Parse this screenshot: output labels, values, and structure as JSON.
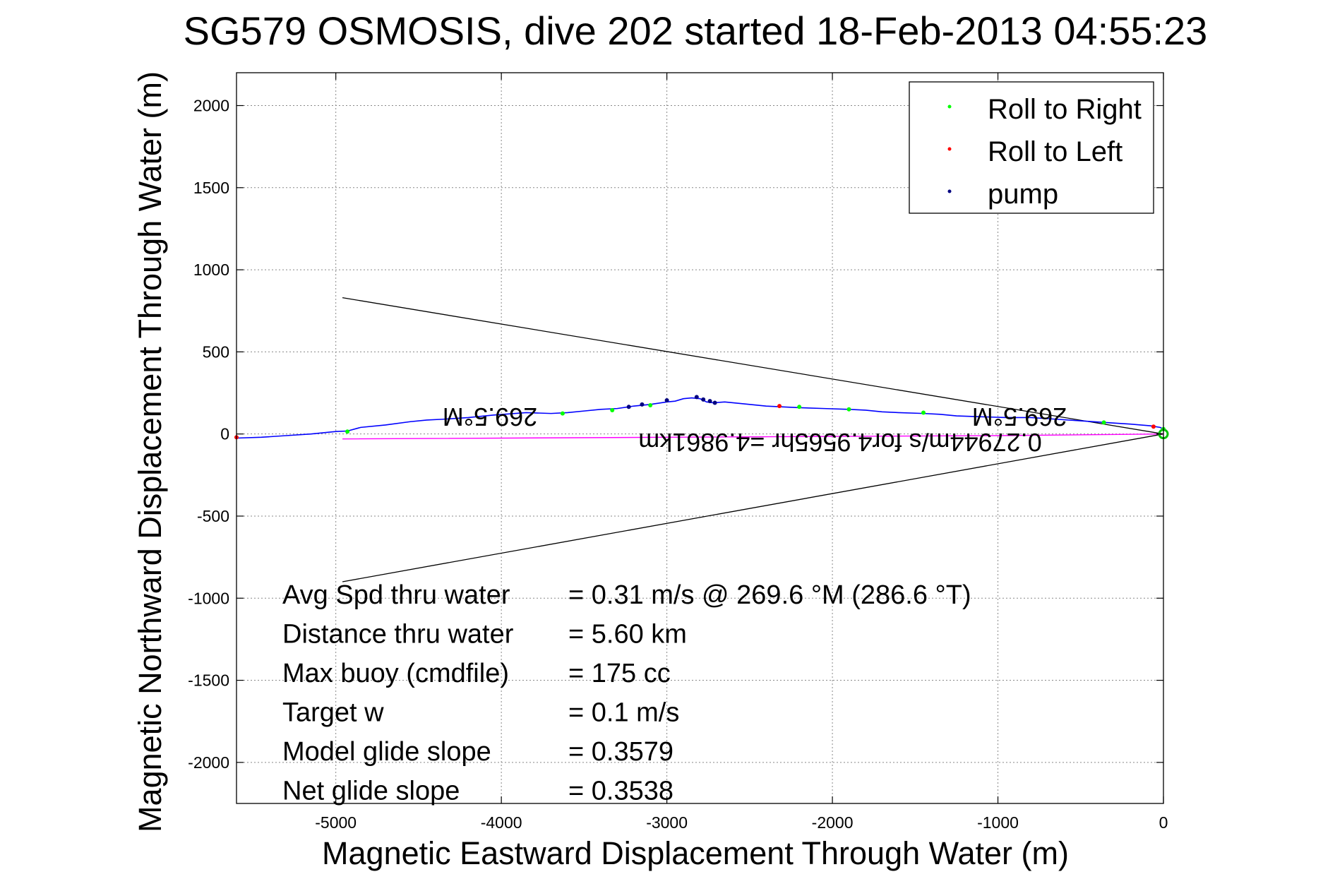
{
  "chart_data": {
    "type": "line",
    "title": "SG579 OSMOSIS, dive 202 started 18-Feb-2013 04:55:23",
    "xlabel": "Magnetic Eastward Displacement Through Water (m)",
    "ylabel": "Magnetic Northward Displacement Through Water (m)",
    "xlim": [
      -5600,
      0
    ],
    "ylim": [
      -2250,
      2200
    ],
    "xticks": [
      -5000,
      -4000,
      -3000,
      -2000,
      -1000,
      0
    ],
    "yticks": [
      2000,
      1500,
      1000,
      500,
      0,
      -500,
      -1000,
      -1500,
      -2000
    ],
    "grid": true,
    "legend_position": "top-right",
    "legend": [
      {
        "label": "Roll to Right",
        "color": "#00ff00"
      },
      {
        "label": "Roll to Left",
        "color": "#ff0000"
      },
      {
        "label": "pump",
        "color": "#000080"
      }
    ],
    "series": [
      {
        "kind": "track",
        "color": "#0000ff",
        "x": [
          -5600,
          -5450,
          -5300,
          -5150,
          -5000,
          -4930,
          -4850,
          -4700,
          -4550,
          -4450,
          -4350,
          -4200,
          -4050,
          -3850,
          -3700,
          -3600,
          -3500,
          -3400,
          -3300,
          -3200,
          -3100,
          -3000,
          -2950,
          -2900,
          -2850,
          -2800,
          -2760,
          -2720,
          -2650,
          -2500,
          -2400,
          -2300,
          -2200,
          -2050,
          -1900,
          -1800,
          -1700,
          -1600,
          -1450,
          -1350,
          -1250,
          -1100,
          -950,
          -800,
          -650,
          -500,
          -350,
          -200,
          -80,
          -20,
          0
        ],
        "y": [
          -25,
          -20,
          -10,
          0,
          15,
          18,
          40,
          55,
          75,
          85,
          90,
          100,
          115,
          130,
          125,
          130,
          140,
          150,
          155,
          170,
          180,
          195,
          200,
          215,
          220,
          215,
          195,
          190,
          195,
          180,
          170,
          165,
          160,
          155,
          150,
          145,
          135,
          130,
          125,
          120,
          110,
          105,
          100,
          100,
          90,
          80,
          70,
          60,
          50,
          40,
          30
        ]
      },
      {
        "kind": "net-path",
        "color": "#ff00ff",
        "x": [
          -4960,
          -3000,
          -1000,
          0
        ],
        "y": [
          -30,
          -20,
          -10,
          0
        ]
      },
      {
        "name": "Roll to Right",
        "kind": "markers",
        "color": "#00ff00",
        "x": [
          -4930,
          -3630,
          -3330,
          -3100,
          -2200,
          -1900,
          -1450,
          -360,
          0
        ],
        "y": [
          15,
          125,
          145,
          175,
          165,
          150,
          130,
          70,
          30
        ]
      },
      {
        "name": "Roll to Left",
        "kind": "markers",
        "color": "#ff0000",
        "x": [
          -5600,
          -2320,
          -60
        ],
        "y": [
          -20,
          170,
          45
        ]
      },
      {
        "name": "pump",
        "kind": "markers",
        "color": "#000080",
        "x": [
          -3230,
          -3150,
          -3000,
          -2820,
          -2780,
          -2740,
          -2710
        ],
        "y": [
          165,
          180,
          205,
          225,
          210,
          200,
          190
        ]
      }
    ],
    "fan_lines": [
      {
        "x": [
          -4960,
          0
        ],
        "y": [
          830,
          0
        ],
        "color": "#000000"
      },
      {
        "x": [
          -4960,
          0
        ],
        "y": [
          -900,
          0
        ],
        "color": "#000000"
      }
    ],
    "annotations": {
      "heading_left": "269.5°M",
      "heading_right": "269.5°M",
      "speed_line": "0.27944m/s for4.9565hr =4.9861km"
    },
    "stats": [
      {
        "label": "Avg Spd thru water",
        "value": "=  0.31 m/s @ 269.6 °M (286.6 °T)"
      },
      {
        "label": "Distance thru water",
        "value": "=  5.60 km"
      },
      {
        "label": "Max buoy (cmdfile)",
        "value": "= 175 cc"
      },
      {
        "label": "Target w",
        "value": "= 0.1 m/s"
      },
      {
        "label": "Model glide slope",
        "value": "= 0.3579"
      },
      {
        "label": "Net glide slope",
        "value": "= 0.3538"
      }
    ]
  }
}
